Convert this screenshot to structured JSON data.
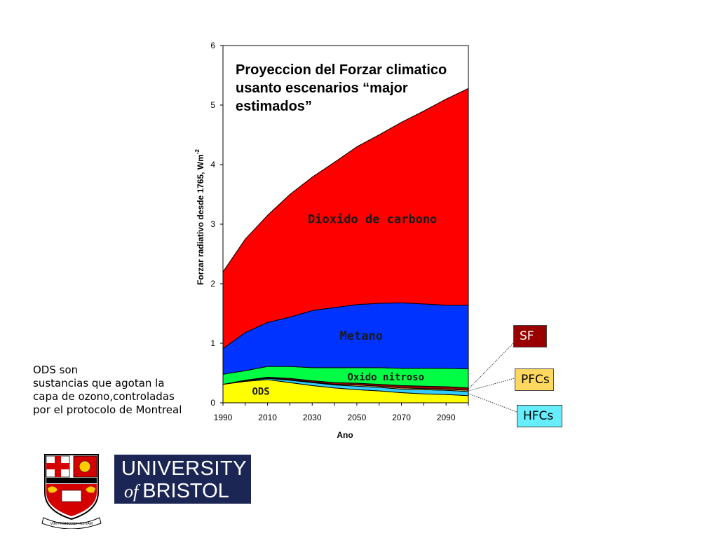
{
  "chart_data": {
    "type": "area",
    "stacked": true,
    "title_lines": [
      "Proyeccion del Forzar climatico",
      "usanto escenarios “major",
      "estimados”"
    ],
    "xlabel": "Ano",
    "ylabel": "Forzar radiativo desde 1765, Wm",
    "ylabel_superscript": "-2",
    "xlim": [
      1990,
      2100
    ],
    "ylim": [
      0,
      6
    ],
    "x_ticks": [
      1990,
      2010,
      2030,
      2050,
      2070,
      2090
    ],
    "y_ticks": [
      0,
      1,
      2,
      3,
      4,
      5,
      6
    ],
    "grid": false,
    "x": [
      1990,
      2000,
      2010,
      2020,
      2030,
      2040,
      2050,
      2060,
      2070,
      2080,
      2090,
      2100
    ],
    "series": [
      {
        "name": "ODS",
        "color": "#ffff00",
        "values": [
          0.31,
          0.36,
          0.39,
          0.34,
          0.29,
          0.25,
          0.22,
          0.2,
          0.17,
          0.15,
          0.14,
          0.12
        ]
      },
      {
        "name": "HFCs",
        "color": "#33ccff",
        "values": [
          0.0,
          0.01,
          0.02,
          0.04,
          0.05,
          0.05,
          0.06,
          0.06,
          0.06,
          0.07,
          0.07,
          0.07
        ]
      },
      {
        "name": "PFCs",
        "color": "#ffd860",
        "values": [
          0.0,
          0.0,
          0.01,
          0.01,
          0.01,
          0.01,
          0.02,
          0.02,
          0.02,
          0.02,
          0.02,
          0.02
        ]
      },
      {
        "name": "SF",
        "color": "#990000",
        "values": [
          0.0,
          0.01,
          0.01,
          0.02,
          0.02,
          0.03,
          0.03,
          0.03,
          0.04,
          0.04,
          0.04,
          0.04
        ]
      },
      {
        "name": "Oxido nitroso",
        "color": "#00ff44",
        "values": [
          0.17,
          0.16,
          0.18,
          0.2,
          0.22,
          0.25,
          0.26,
          0.28,
          0.29,
          0.3,
          0.31,
          0.32
        ]
      },
      {
        "name": "Metano",
        "color": "#0033ff",
        "values": [
          0.43,
          0.64,
          0.74,
          0.83,
          0.96,
          1.01,
          1.06,
          1.08,
          1.1,
          1.08,
          1.06,
          1.07
        ]
      },
      {
        "name": "Dioxido de carbono",
        "color": "#ff0000",
        "values": [
          1.29,
          1.57,
          1.8,
          2.06,
          2.24,
          2.44,
          2.65,
          2.83,
          3.03,
          3.24,
          3.46,
          3.64
        ]
      }
    ],
    "area_labels": [
      {
        "series": "ODS",
        "text": "ODS"
      },
      {
        "series": "Oxido nitroso",
        "text": "Oxido nitroso"
      },
      {
        "series": "Metano",
        "text": "Metano"
      },
      {
        "series": "Dioxido de carbono",
        "text": "Dioxido de carbono"
      }
    ],
    "callouts": [
      {
        "series": "SF",
        "text": "SF"
      },
      {
        "series": "PFCs",
        "text": "PFCs"
      },
      {
        "series": "HFCs",
        "text": "HFCs"
      }
    ]
  },
  "note": {
    "text": "ODS son\nsustancias que agotan la\ncapa de ozono,controladas\npor el protocolo de Montreal"
  },
  "logo": {
    "line1": "UNIVERSITY",
    "of": "of",
    "line2": "BRISTOL",
    "crest_motto": "VIM PROMOVET INSITAM",
    "background": "#1b2654"
  }
}
